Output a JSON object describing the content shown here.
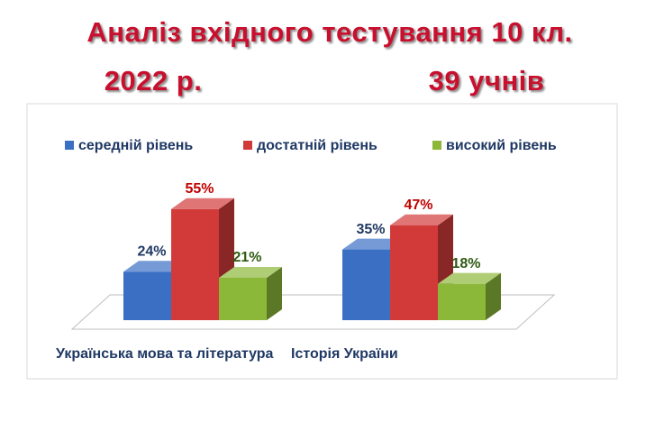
{
  "chart_data": {
    "type": "bar3d",
    "title": "Аналіз вхідного тестування 10 кл.",
    "subtitle": "2022 р.",
    "annotation": "39 учнів",
    "categories": [
      "Українська мова та література",
      "Історія України"
    ],
    "series": [
      {
        "name": "середній рівень",
        "color": "#3a6fc4",
        "values": [
          24,
          35
        ],
        "value_labels": [
          "24%",
          "35%"
        ]
      },
      {
        "name": "достатній  рівень",
        "color": "#d23a3a",
        "values": [
          55,
          47
        ],
        "value_labels": [
          "55%",
          "47%"
        ]
      },
      {
        "name": "високий рівень",
        "color": "#8cb83a",
        "values": [
          21,
          18
        ],
        "value_labels": [
          "21%",
          "18%"
        ]
      }
    ],
    "legend": "top"
  }
}
